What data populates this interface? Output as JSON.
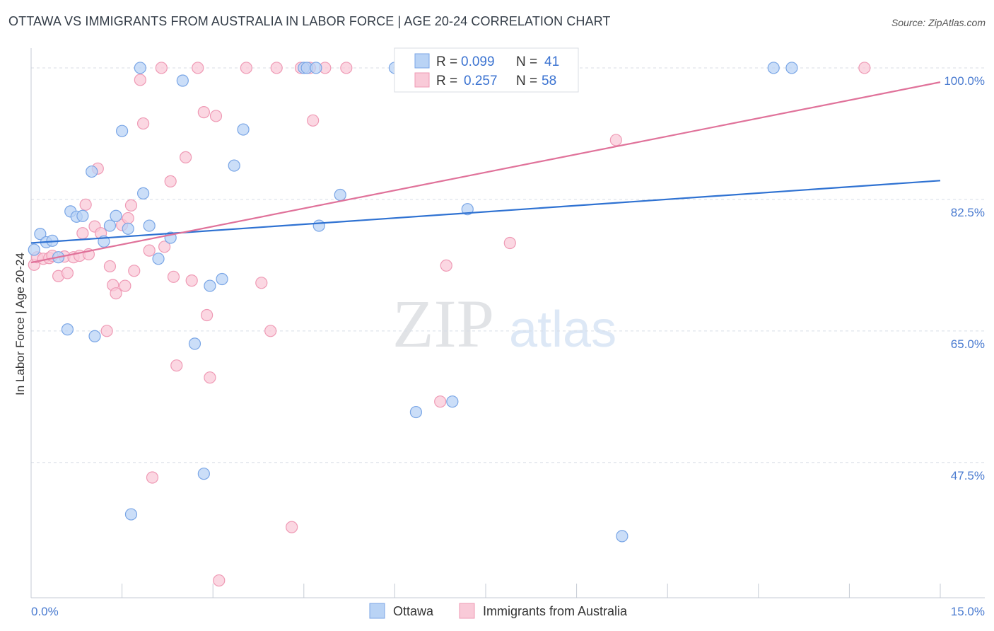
{
  "title": "OTTAWA VS IMMIGRANTS FROM AUSTRALIA IN LABOR FORCE | AGE 20-24 CORRELATION CHART",
  "source": "Source: ZipAtlas.com",
  "watermark": {
    "zip": "ZIP",
    "atlas": "atlas"
  },
  "colors": {
    "ottawa_fill": "#b9d3f5",
    "ottawa_stroke": "#7aa6e6",
    "ottawa_line": "#2f72d2",
    "aus_fill": "#f9cad8",
    "aus_stroke": "#ef9ab5",
    "aus_line": "#e0729a",
    "grid": "#d8dde6",
    "tick_label": "#4a7bd0"
  },
  "legend": {
    "r_label": "R =",
    "n_label": "N =",
    "ottawa": {
      "r": "0.099",
      "n": "41"
    },
    "aus": {
      "r": "0.257",
      "n": "58"
    }
  },
  "chart_data": {
    "type": "scatter",
    "title": "OTTAWA VS IMMIGRANTS FROM AUSTRALIA IN LABOR FORCE | AGE 20-24 CORRELATION CHART",
    "xlabel": "",
    "ylabel": "In Labor Force | Age 20-24",
    "xlim": [
      0,
      15
    ],
    "ylim": [
      29.5,
      101.5
    ],
    "x_tick_labels": {
      "min": "0.0%",
      "max": "15.0%"
    },
    "y_ticks": [
      47.5,
      65.0,
      82.5,
      100.0
    ],
    "y_tick_labels": [
      "47.5%",
      "65.0%",
      "82.5%",
      "100.0%"
    ],
    "grid": true,
    "legend_position": "top-center",
    "series": [
      {
        "name": "Ottawa",
        "trend": {
          "x": [
            0,
            15
          ],
          "y": [
            76.7,
            85.0
          ]
        },
        "points": [
          [
            0.05,
            75.8
          ],
          [
            0.15,
            77.9
          ],
          [
            0.25,
            76.8
          ],
          [
            0.35,
            77.0
          ],
          [
            0.45,
            74.8
          ],
          [
            0.6,
            65.2
          ],
          [
            0.65,
            80.9
          ],
          [
            0.75,
            80.2
          ],
          [
            0.85,
            80.3
          ],
          [
            1.0,
            86.2
          ],
          [
            1.05,
            64.3
          ],
          [
            1.2,
            76.9
          ],
          [
            1.3,
            79.0
          ],
          [
            1.4,
            80.3
          ],
          [
            1.5,
            91.6
          ],
          [
            1.6,
            78.6
          ],
          [
            1.65,
            40.6
          ],
          [
            1.8,
            100.0
          ],
          [
            1.85,
            83.3
          ],
          [
            1.95,
            79.0
          ],
          [
            2.1,
            74.6
          ],
          [
            2.3,
            77.4
          ],
          [
            2.5,
            98.3
          ],
          [
            2.7,
            63.3
          ],
          [
            2.85,
            46.0
          ],
          [
            2.95,
            71.0
          ],
          [
            3.15,
            71.9
          ],
          [
            3.35,
            87.0
          ],
          [
            3.5,
            91.8
          ],
          [
            4.5,
            100.0
          ],
          [
            4.55,
            100.0
          ],
          [
            4.7,
            100.0
          ],
          [
            4.75,
            79.0
          ],
          [
            5.1,
            83.1
          ],
          [
            6.0,
            100.0
          ],
          [
            6.35,
            54.2
          ],
          [
            6.95,
            55.6
          ],
          [
            7.2,
            81.2
          ],
          [
            9.75,
            37.7
          ],
          [
            12.25,
            100.0
          ],
          [
            12.55,
            100.0
          ]
        ]
      },
      {
        "name": "Immigrants from Australia",
        "trend": {
          "x": [
            0,
            15
          ],
          "y": [
            74.1,
            98.1
          ]
        },
        "points": [
          [
            0.05,
            73.8
          ],
          [
            0.1,
            74.8
          ],
          [
            0.2,
            74.6
          ],
          [
            0.3,
            74.7
          ],
          [
            0.35,
            75.0
          ],
          [
            0.45,
            72.3
          ],
          [
            0.55,
            74.9
          ],
          [
            0.6,
            72.7
          ],
          [
            0.7,
            74.8
          ],
          [
            0.8,
            75.0
          ],
          [
            0.85,
            78.0
          ],
          [
            0.9,
            81.8
          ],
          [
            0.95,
            75.2
          ],
          [
            1.05,
            78.9
          ],
          [
            1.1,
            86.6
          ],
          [
            1.15,
            78.0
          ],
          [
            1.25,
            65.0
          ],
          [
            1.3,
            73.6
          ],
          [
            1.35,
            71.1
          ],
          [
            1.4,
            70.0
          ],
          [
            1.5,
            79.1
          ],
          [
            1.55,
            71.0
          ],
          [
            1.6,
            80.0
          ],
          [
            1.65,
            81.7
          ],
          [
            1.7,
            73.0
          ],
          [
            1.8,
            98.4
          ],
          [
            1.85,
            92.6
          ],
          [
            1.95,
            75.7
          ],
          [
            2.0,
            45.5
          ],
          [
            2.15,
            100.0
          ],
          [
            2.2,
            76.2
          ],
          [
            2.3,
            84.9
          ],
          [
            2.35,
            72.2
          ],
          [
            2.4,
            60.4
          ],
          [
            2.55,
            88.1
          ],
          [
            2.65,
            71.7
          ],
          [
            2.75,
            100.0
          ],
          [
            2.85,
            94.1
          ],
          [
            2.9,
            67.1
          ],
          [
            2.95,
            58.8
          ],
          [
            3.05,
            93.6
          ],
          [
            3.1,
            31.8
          ],
          [
            3.55,
            100.0
          ],
          [
            3.8,
            71.4
          ],
          [
            3.95,
            65.0
          ],
          [
            4.05,
            100.0
          ],
          [
            4.3,
            38.9
          ],
          [
            4.45,
            100.0
          ],
          [
            4.6,
            100.0
          ],
          [
            4.65,
            93.0
          ],
          [
            4.85,
            100.0
          ],
          [
            5.2,
            100.0
          ],
          [
            6.1,
            100.0
          ],
          [
            6.75,
            55.6
          ],
          [
            6.85,
            73.7
          ],
          [
            7.9,
            76.7
          ],
          [
            9.65,
            90.4
          ],
          [
            13.75,
            100.0
          ]
        ]
      }
    ]
  },
  "bottom_legend": {
    "ottawa": "Ottawa",
    "aus": "Immigrants from Australia"
  }
}
